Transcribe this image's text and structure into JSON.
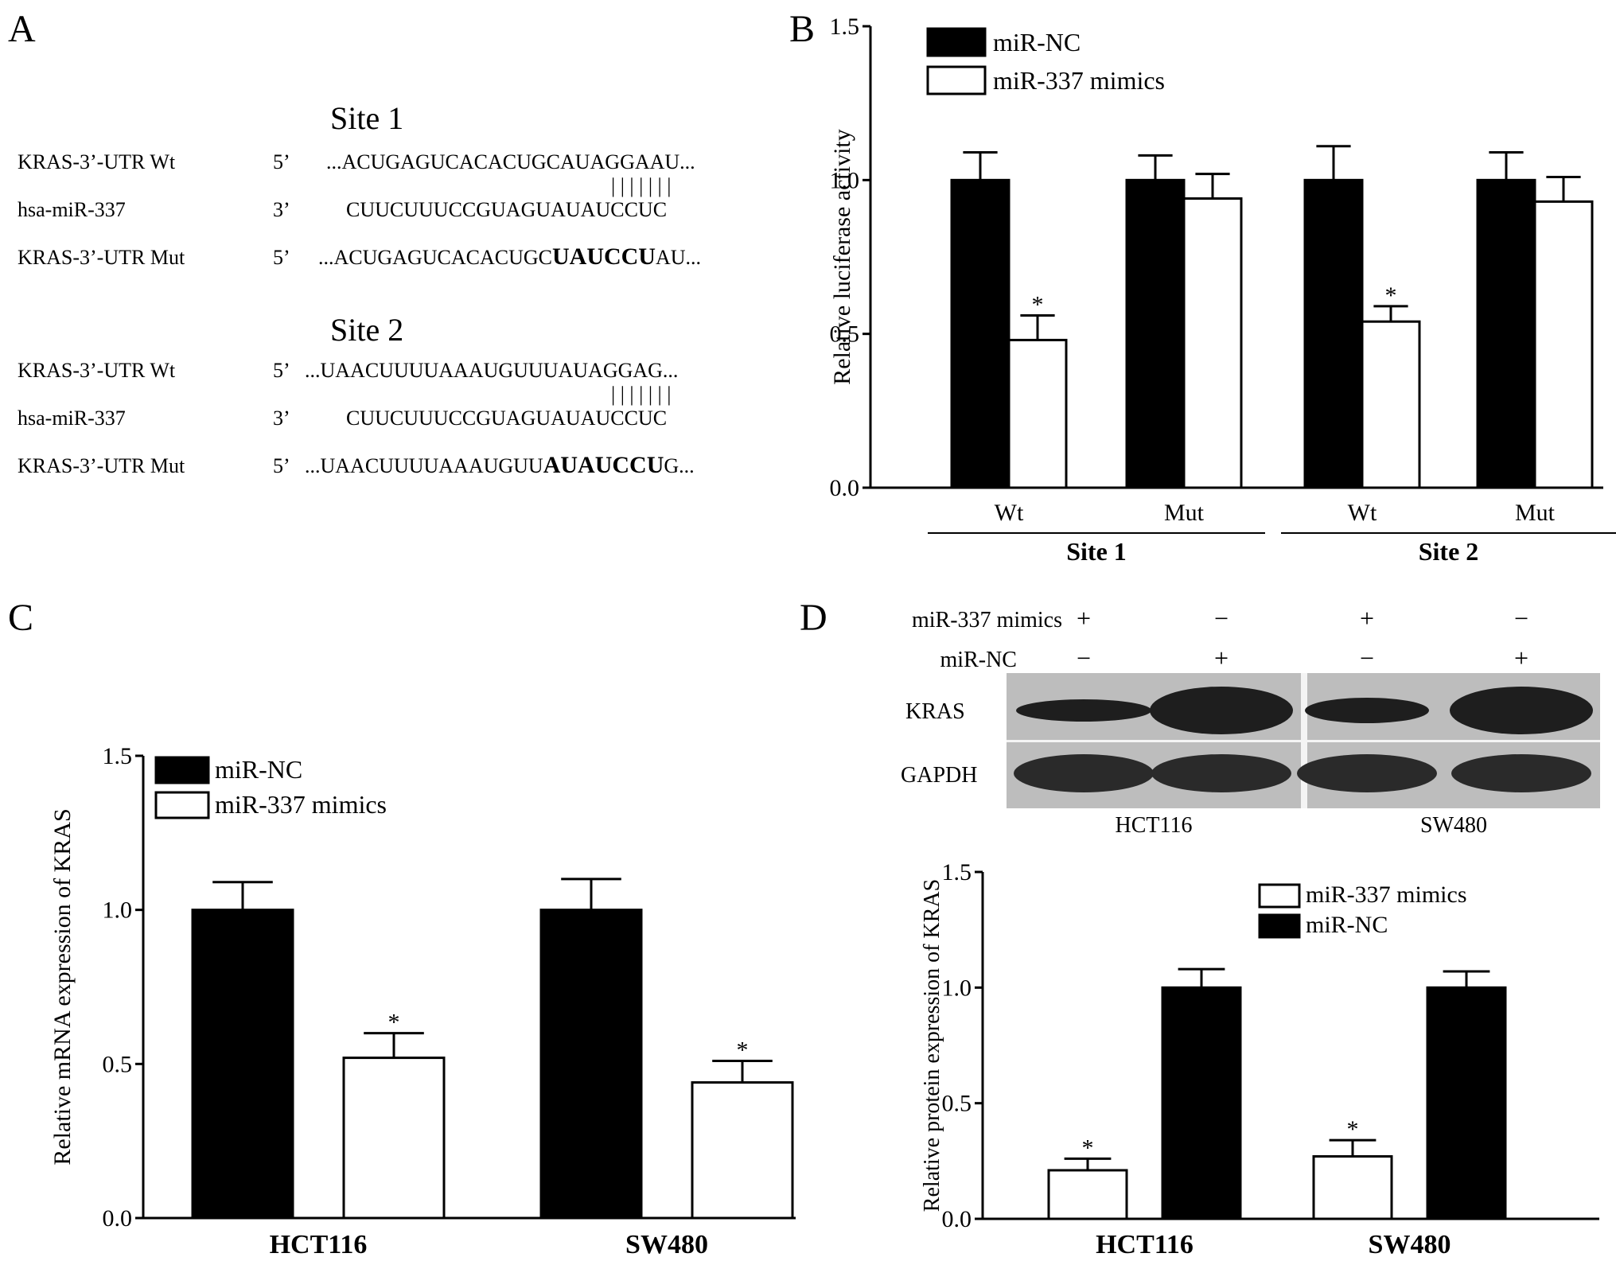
{
  "panel_labels": {
    "a": "A",
    "b": "B",
    "c": "C",
    "d": "D"
  },
  "panel_a": {
    "sites": [
      {
        "title": "Site 1",
        "rows": [
          {
            "label": "KRAS-3’-UTR Wt",
            "end": "5’",
            "seq_pre": "...ACUGAGUCACACUGCAUAGGAAU...",
            "seq_bold": "",
            "seq_post": ""
          },
          {
            "label": "hsa-miR-337",
            "end": "3’",
            "seq_pre": "CUUCUUUCCGUAGUAUAUCCUC",
            "seq_bold": "",
            "seq_post": ""
          },
          {
            "label": "KRAS-3’-UTR Mut",
            "end": "5’",
            "seq_pre": "...ACUGAGUCACACUGC",
            "seq_bold": "UAUCCU",
            "seq_post": "AU..."
          }
        ],
        "pairing": "| | | | | | |"
      },
      {
        "title": "Site 2",
        "rows": [
          {
            "label": "KRAS-3’-UTR Wt",
            "end": "5’",
            "seq_pre": "...UAACUUUUAAAUGUUUAUAGGAG...",
            "seq_bold": "",
            "seq_post": ""
          },
          {
            "label": "hsa-miR-337",
            "end": "3’",
            "seq_pre": "CUUCUUUCCGUAGUAUAUCCUC",
            "seq_bold": "",
            "seq_post": ""
          },
          {
            "label": "KRAS-3’-UTR Mut",
            "end": "5’",
            "seq_pre": "...UAACUUUUAAAUGUU",
            "seq_bold": "AUAUCCU",
            "seq_post": "G..."
          }
        ],
        "pairing": "| | | | | | |"
      }
    ]
  },
  "panel_d_blot": {
    "treatments": [
      {
        "label": "miR-337 mimics",
        "signs": [
          "+",
          "−",
          "+",
          "−"
        ]
      },
      {
        "label": "miR-NC",
        "signs": [
          "−",
          "+",
          "−",
          "+"
        ]
      }
    ],
    "bands": [
      "KRAS",
      "GAPDH"
    ],
    "cell_lines": [
      "HCT116",
      "SW480"
    ]
  },
  "colors": {
    "nc_fill": "#000000",
    "mimic_fill": "#ffffff",
    "stroke": "#000000",
    "blot_bg": "#bdbdbd",
    "band": "#1e1e1e"
  },
  "chart_data": [
    {
      "panel": "B",
      "type": "bar",
      "ylabel": "Relative luciferase activity",
      "xlabel": "",
      "ylim": [
        0,
        1.5
      ],
      "yticks": [
        "0.0",
        "0.5",
        "1.0",
        "1.5"
      ],
      "categories": [
        "Wt",
        "Mut",
        "Wt",
        "Mut"
      ],
      "groups": [
        {
          "label": "Site 1",
          "span": [
            0,
            1
          ]
        },
        {
          "label": "Site 2",
          "span": [
            2,
            3
          ]
        }
      ],
      "series": [
        {
          "name": "miR-NC",
          "color": "#000000",
          "values": [
            1.0,
            1.0,
            1.0,
            1.0
          ],
          "errors": [
            0.09,
            0.08,
            0.11,
            0.09
          ],
          "stars": [
            false,
            false,
            false,
            false
          ]
        },
        {
          "name": "miR-337 mimics",
          "color": "#ffffff",
          "values": [
            0.48,
            0.94,
            0.54,
            0.93
          ],
          "errors": [
            0.08,
            0.08,
            0.05,
            0.08
          ],
          "stars": [
            true,
            false,
            true,
            false
          ]
        }
      ],
      "legend": "top-left",
      "grid": false,
      "star_label": "*"
    },
    {
      "panel": "C",
      "type": "bar",
      "ylabel": "Relative mRNA expression of KRAS",
      "xlabel": "",
      "ylim": [
        0,
        1.5
      ],
      "yticks": [
        "0.0",
        "0.5",
        "1.0",
        "1.5"
      ],
      "categories": [
        "HCT116",
        "SW480"
      ],
      "series": [
        {
          "name": "miR-NC",
          "color": "#000000",
          "values": [
            1.0,
            1.0
          ],
          "errors": [
            0.09,
            0.1
          ],
          "stars": [
            false,
            false
          ]
        },
        {
          "name": "miR-337 mimics",
          "color": "#ffffff",
          "values": [
            0.52,
            0.44
          ],
          "errors": [
            0.08,
            0.07
          ],
          "stars": [
            true,
            true
          ]
        }
      ],
      "legend": "top-left",
      "grid": false,
      "star_label": "*"
    },
    {
      "panel": "D",
      "type": "bar",
      "ylabel": "Relative protein expression of KRAS",
      "xlabel": "",
      "ylim": [
        0,
        1.5
      ],
      "yticks": [
        "0.0",
        "0.5",
        "1.0",
        "1.5"
      ],
      "categories": [
        "HCT116",
        "SW480"
      ],
      "series": [
        {
          "name": "miR-337 mimics",
          "color": "#ffffff",
          "values": [
            0.21,
            0.27
          ],
          "errors": [
            0.05,
            0.07
          ],
          "stars": [
            true,
            true
          ]
        },
        {
          "name": "miR-NC",
          "color": "#000000",
          "values": [
            1.0,
            1.0
          ],
          "errors": [
            0.08,
            0.07
          ],
          "stars": [
            false,
            false
          ]
        }
      ],
      "legend": "top-right",
      "grid": false,
      "star_label": "*"
    }
  ]
}
